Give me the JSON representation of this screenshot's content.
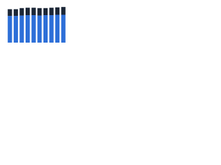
{
  "chart_data": {
    "type": "stacked_bar",
    "categories": [
      null,
      null,
      null,
      null,
      null,
      null,
      null,
      null,
      null,
      null
    ],
    "series": [
      {
        "color": "#2d6fd8",
        "values": [
          72,
          72,
          73,
          74,
          74,
          73,
          74,
          74,
          75,
          75
        ]
      },
      {
        "color": "#1b2636",
        "values": [
          18,
          18,
          20,
          20,
          20,
          20,
          19,
          20,
          20,
          21
        ]
      }
    ],
    "ylim": [
      0,
      100
    ]
  }
}
